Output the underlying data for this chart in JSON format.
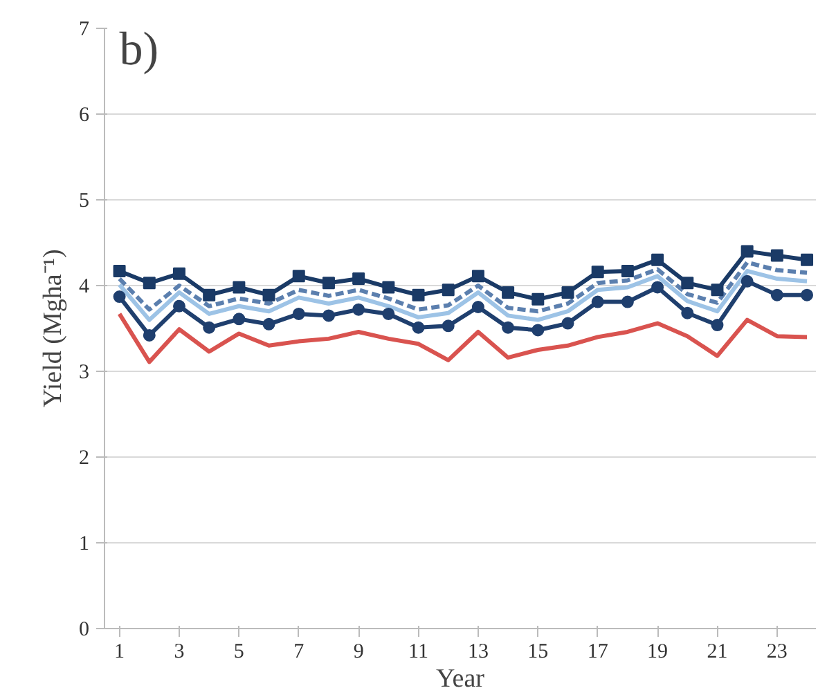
{
  "chart_data": {
    "type": "line",
    "xlabel": "Year",
    "ylabel": "Yield (Mgha⁻¹)",
    "annotations": [
      "b)"
    ],
    "x": [
      1,
      2,
      3,
      4,
      5,
      6,
      7,
      8,
      9,
      10,
      11,
      12,
      13,
      14,
      15,
      16,
      17,
      18,
      19,
      20,
      21,
      22,
      23,
      24
    ],
    "xlim": [
      0.5,
      24.3
    ],
    "xticks": [
      1,
      3,
      5,
      7,
      9,
      11,
      13,
      15,
      17,
      19,
      21,
      23
    ],
    "ylim": [
      0,
      7
    ],
    "yticks": [
      0,
      1,
      2,
      3,
      4,
      5,
      6,
      7
    ],
    "grid": "y",
    "series": [
      {
        "color": "#d9534f",
        "marker": "none",
        "line_style": "solid",
        "values": [
          3.67,
          3.11,
          3.49,
          3.23,
          3.44,
          3.3,
          3.35,
          3.38,
          3.46,
          3.38,
          3.32,
          3.13,
          3.46,
          3.16,
          3.25,
          3.3,
          3.4,
          3.46,
          3.56,
          3.41,
          3.18,
          3.6,
          3.41,
          3.4
        ]
      },
      {
        "color": "#9dc3e6",
        "marker": "none",
        "line_style": "solid",
        "values": [
          4.01,
          3.6,
          3.92,
          3.67,
          3.76,
          3.7,
          3.86,
          3.79,
          3.86,
          3.76,
          3.63,
          3.68,
          3.92,
          3.65,
          3.6,
          3.7,
          3.95,
          3.98,
          4.11,
          3.82,
          3.7,
          4.17,
          4.08,
          4.05
        ]
      },
      {
        "color": "#5b7fae",
        "marker": "none",
        "line_style": "dashed",
        "values": [
          4.08,
          3.72,
          4.0,
          3.76,
          3.85,
          3.79,
          3.95,
          3.88,
          3.95,
          3.85,
          3.72,
          3.77,
          4.0,
          3.74,
          3.7,
          3.79,
          4.03,
          4.06,
          4.19,
          3.9,
          3.8,
          4.27,
          4.18,
          4.15
        ]
      },
      {
        "color": "#1f3f6e",
        "marker": "circle",
        "line_style": "solid",
        "values": [
          3.87,
          3.42,
          3.76,
          3.51,
          3.61,
          3.55,
          3.67,
          3.65,
          3.72,
          3.67,
          3.51,
          3.53,
          3.75,
          3.51,
          3.48,
          3.56,
          3.81,
          3.81,
          3.98,
          3.68,
          3.54,
          4.05,
          3.89,
          3.89
        ]
      },
      {
        "color": "#1a3a66",
        "marker": "square",
        "line_style": "solid",
        "values": [
          4.17,
          4.03,
          4.14,
          3.89,
          3.98,
          3.89,
          4.11,
          4.03,
          4.08,
          3.98,
          3.89,
          3.95,
          4.11,
          3.92,
          3.84,
          3.92,
          4.16,
          4.17,
          4.3,
          4.03,
          3.95,
          4.4,
          4.35,
          4.3
        ]
      }
    ]
  }
}
